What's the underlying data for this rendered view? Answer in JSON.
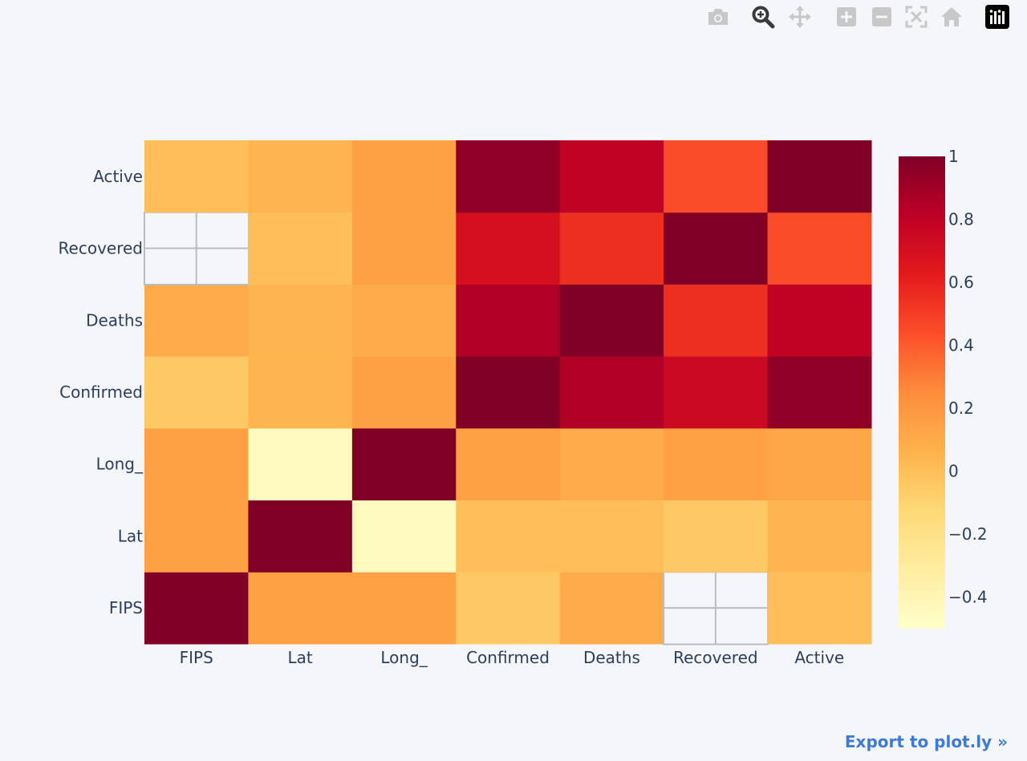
{
  "modebar": {
    "buttons": [
      {
        "name": "camera-icon",
        "color": "#c8c8c8"
      },
      {
        "name": "zoom-icon",
        "color": "#3a3a3a"
      },
      {
        "name": "pan-icon",
        "color": "#c8c8c8"
      },
      {
        "name": "zoom-in-icon",
        "color": "#c8c8c8"
      },
      {
        "name": "zoom-out-icon",
        "color": "#c8c8c8"
      },
      {
        "name": "autoscale-icon",
        "color": "#c8c8c8"
      },
      {
        "name": "reset-axes-icon",
        "color": "#c8c8c8"
      },
      {
        "name": "plotly-logo-icon",
        "color": "#000000"
      }
    ]
  },
  "export_label": "Export to plot.ly »",
  "chart_data": {
    "type": "heatmap",
    "x_categories": [
      "FIPS",
      "Lat",
      "Long_",
      "Confirmed",
      "Deaths",
      "Recovered",
      "Active"
    ],
    "y_categories": [
      "FIPS",
      "Lat",
      "Long_",
      "Confirmed",
      "Deaths",
      "Recovered",
      "Active"
    ],
    "z": [
      [
        1.0,
        0.15,
        0.15,
        -0.05,
        0.1,
        null,
        0.0
      ],
      [
        0.15,
        1.0,
        -0.45,
        0.0,
        0.0,
        -0.05,
        0.05
      ],
      [
        0.15,
        -0.45,
        1.0,
        0.15,
        0.1,
        0.15,
        0.12
      ],
      [
        -0.05,
        0.05,
        0.15,
        1.0,
        0.85,
        0.75,
        0.95
      ],
      [
        0.1,
        0.05,
        0.1,
        0.85,
        1.0,
        0.55,
        0.8
      ],
      [
        null,
        0.0,
        0.15,
        0.7,
        0.55,
        1.0,
        0.45
      ],
      [
        0.0,
        0.05,
        0.15,
        0.95,
        0.8,
        0.45,
        1.0
      ]
    ],
    "zmin": -0.5,
    "zmax": 1.0,
    "colorscale": "YlOrRd",
    "colorbar_ticks": [
      "1",
      "0.8",
      "0.6",
      "0.4",
      "0.2",
      "0",
      "−0.2",
      "−0.4"
    ],
    "colorbar_tick_values": [
      1,
      0.8,
      0.6,
      0.4,
      0.2,
      0,
      -0.2,
      -0.4
    ],
    "missing_cell_color": "#f5f6fa",
    "grid_color": "#b9bcc2"
  }
}
